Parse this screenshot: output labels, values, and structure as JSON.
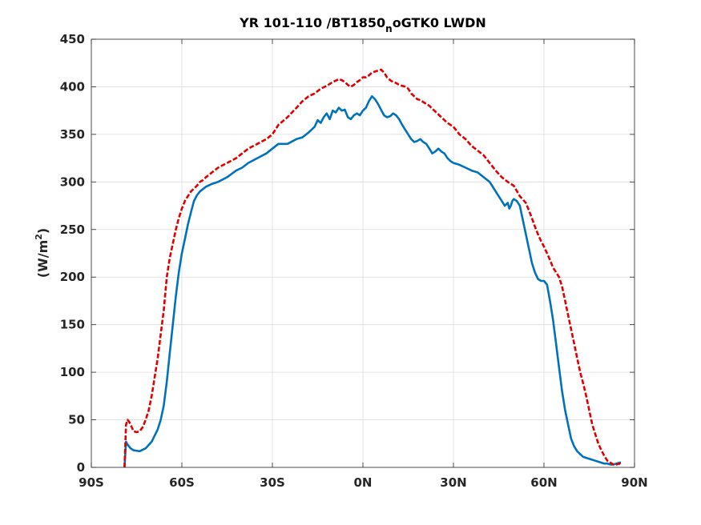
{
  "chart_data": {
    "type": "line",
    "title": {
      "main": "YR 101-110 /BT1850",
      "subscript": "n",
      "rest": "oGTK0 LWDN"
    },
    "ylabel": {
      "main": "(W/m",
      "superscript": "2",
      "close": ")"
    },
    "xlabel": "",
    "xlim": [
      -90,
      90
    ],
    "ylim": [
      0,
      450
    ],
    "x_ticks": [
      {
        "value": -90,
        "label": "90S"
      },
      {
        "value": -60,
        "label": "60S"
      },
      {
        "value": -30,
        "label": "30S"
      },
      {
        "value": 0,
        "label": "0N"
      },
      {
        "value": 30,
        "label": "30N"
      },
      {
        "value": 60,
        "label": "60N"
      },
      {
        "value": 90,
        "label": "90N"
      }
    ],
    "y_ticks": [
      {
        "value": 0,
        "label": "0"
      },
      {
        "value": 50,
        "label": "50"
      },
      {
        "value": 100,
        "label": "100"
      },
      {
        "value": 150,
        "label": "150"
      },
      {
        "value": 200,
        "label": "200"
      },
      {
        "value": 250,
        "label": "250"
      },
      {
        "value": 300,
        "label": "300"
      },
      {
        "value": 350,
        "label": "350"
      },
      {
        "value": 400,
        "label": "400"
      },
      {
        "value": 450,
        "label": "450"
      }
    ],
    "grid": true,
    "series": [
      {
        "color": "#0072BD",
        "style": "solid",
        "x": [
          -79,
          -78.5,
          -78,
          -77,
          -76,
          -74,
          -72,
          -70,
          -68,
          -67,
          -66,
          -65,
          -64,
          -63,
          -62,
          -61,
          -60,
          -59,
          -58,
          -57,
          -56,
          -55,
          -54,
          -52,
          -50,
          -48,
          -45,
          -42,
          -40,
          -38,
          -35,
          -32,
          -30,
          -28,
          -25,
          -22,
          -20,
          -18,
          -17,
          -16,
          -15,
          -14,
          -13,
          -12,
          -11,
          -10,
          -9,
          -8,
          -7,
          -6,
          -5,
          -4,
          -3,
          -2,
          -1,
          0,
          1,
          2,
          3,
          4,
          5,
          6,
          7,
          8,
          9,
          10,
          11,
          12,
          13,
          14,
          15,
          16,
          17,
          18,
          19,
          20,
          21,
          22,
          23,
          24,
          25,
          26,
          27,
          28,
          29,
          30,
          32,
          34,
          36,
          38,
          40,
          42,
          43,
          44,
          45,
          46,
          47,
          48,
          48.5,
          49,
          49.5,
          50,
          51,
          52,
          53,
          54,
          55,
          56,
          57,
          58,
          59,
          60,
          61,
          62,
          63,
          64,
          65,
          66,
          67,
          68,
          69,
          70,
          71,
          72,
          73,
          74,
          75,
          76,
          77,
          78,
          79,
          80,
          81,
          82,
          83,
          84,
          85,
          85.5
        ],
        "y": [
          0,
          27,
          24,
          20,
          18,
          17,
          20,
          27,
          40,
          50,
          65,
          90,
          120,
          150,
          180,
          205,
          225,
          240,
          255,
          268,
          280,
          286,
          290,
          295,
          298,
          300,
          305,
          312,
          315,
          320,
          325,
          330,
          335,
          340,
          340,
          345,
          347,
          352,
          355,
          358,
          365,
          362,
          368,
          372,
          366,
          375,
          373,
          378,
          375,
          376,
          368,
          366,
          370,
          372,
          370,
          375,
          378,
          385,
          390,
          387,
          382,
          376,
          370,
          368,
          369,
          372,
          370,
          366,
          360,
          355,
          350,
          345,
          342,
          343,
          345,
          342,
          340,
          335,
          330,
          332,
          335,
          332,
          330,
          325,
          322,
          320,
          318,
          315,
          312,
          310,
          305,
          300,
          295,
          290,
          285,
          280,
          275,
          278,
          272,
          275,
          280,
          282,
          280,
          275,
          260,
          245,
          230,
          215,
          205,
          198,
          196,
          196,
          192,
          175,
          155,
          130,
          105,
          80,
          60,
          45,
          30,
          22,
          17,
          14,
          11,
          10,
          9,
          8,
          7,
          6,
          5,
          4,
          4,
          3,
          3,
          4,
          5,
          5
        ]
      },
      {
        "color": "#E00000",
        "style": "dashed",
        "x": [
          -79,
          -78.5,
          -78,
          -77.5,
          -77,
          -76,
          -75,
          -74,
          -73,
          -72,
          -71,
          -70,
          -69,
          -68,
          -67,
          -66,
          -65,
          -64,
          -63,
          -62,
          -61,
          -60,
          -59,
          -58,
          -57,
          -56,
          -55,
          -54,
          -53,
          -52,
          -50,
          -48,
          -45,
          -42,
          -40,
          -38,
          -35,
          -32,
          -30,
          -28,
          -25,
          -22,
          -20,
          -18,
          -16,
          -14,
          -12,
          -10,
          -8,
          -7,
          -6,
          -5,
          -4,
          -3,
          -2,
          -1,
          0,
          1,
          2,
          3,
          4,
          5,
          6,
          7,
          8,
          9,
          10,
          11,
          12,
          13,
          14,
          15,
          16,
          17,
          18,
          19,
          20,
          22,
          24,
          26,
          28,
          30,
          32,
          34,
          36,
          38,
          40,
          42,
          44,
          46,
          48,
          50,
          52,
          54,
          55,
          56,
          57,
          58,
          59,
          60,
          61,
          62,
          63,
          64,
          65,
          66,
          67,
          68,
          69,
          70,
          71,
          72,
          73,
          74,
          75,
          76,
          77,
          78,
          79,
          80,
          81,
          82,
          83,
          84,
          85,
          85.5
        ],
        "y": [
          0,
          45,
          50,
          48,
          45,
          38,
          37,
          38,
          42,
          50,
          60,
          75,
          95,
          115,
          140,
          165,
          200,
          220,
          235,
          250,
          262,
          272,
          280,
          285,
          290,
          293,
          296,
          300,
          302,
          305,
          310,
          315,
          320,
          325,
          330,
          335,
          340,
          345,
          350,
          360,
          368,
          378,
          385,
          390,
          393,
          398,
          401,
          405,
          408,
          407,
          405,
          402,
          400,
          402,
          405,
          407,
          410,
          410,
          412,
          415,
          416,
          417,
          418,
          415,
          410,
          407,
          405,
          404,
          402,
          401,
          400,
          398,
          393,
          390,
          387,
          386,
          384,
          380,
          374,
          368,
          362,
          358,
          350,
          345,
          338,
          333,
          328,
          320,
          312,
          305,
          300,
          296,
          285,
          278,
          270,
          262,
          253,
          245,
          238,
          232,
          225,
          218,
          210,
          205,
          200,
          190,
          175,
          160,
          145,
          130,
          115,
          100,
          88,
          75,
          60,
          45,
          35,
          25,
          18,
          12,
          7,
          5,
          3,
          3,
          4,
          3
        ]
      }
    ]
  }
}
